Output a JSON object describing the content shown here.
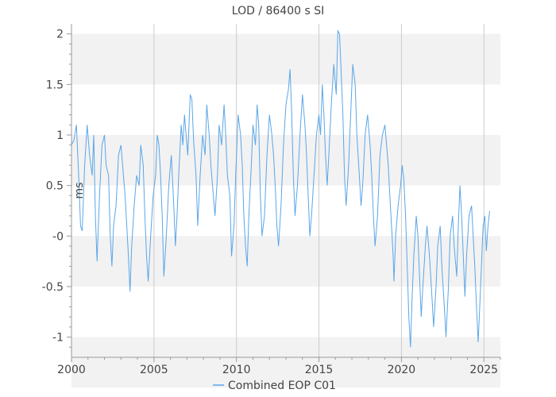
{
  "chart_data": {
    "type": "line",
    "title": "LOD / 86400 s SI",
    "xlabel": "",
    "ylabel": "ms",
    "xlim": [
      2000,
      2026
    ],
    "ylim": [
      -1.2,
      2.1
    ],
    "xticks": [
      2000,
      2005,
      2010,
      2015,
      2020,
      2025
    ],
    "xtick_labels": [
      "2000",
      "2005",
      "2010",
      "2015",
      "2020",
      "2025"
    ],
    "yticks": [
      -1,
      -0.5,
      0,
      0.5,
      1,
      1.5,
      2
    ],
    "ytick_labels": [
      "-1",
      "-0.5",
      "-0",
      "0.5",
      "1",
      "1.5",
      "2"
    ],
    "grid": "vertical lines + alternating horizontal bands",
    "legend": "bottom-center",
    "series": [
      {
        "name": "Combined EOP C01",
        "color": "#5aa6e8",
        "points": [
          [
            2000.0,
            0.9
          ],
          [
            2000.15,
            0.95
          ],
          [
            2000.3,
            1.1
          ],
          [
            2000.45,
            0.55
          ],
          [
            2000.55,
            0.1
          ],
          [
            2000.65,
            0.05
          ],
          [
            2000.8,
            0.7
          ],
          [
            2000.95,
            1.1
          ],
          [
            2001.1,
            0.8
          ],
          [
            2001.25,
            0.6
          ],
          [
            2001.35,
            1.0
          ],
          [
            2001.45,
            0.2
          ],
          [
            2001.55,
            -0.25
          ],
          [
            2001.7,
            0.4
          ],
          [
            2001.85,
            0.9
          ],
          [
            2002.0,
            1.0
          ],
          [
            2002.1,
            0.7
          ],
          [
            2002.25,
            0.6
          ],
          [
            2002.35,
            0.0
          ],
          [
            2002.45,
            -0.3
          ],
          [
            2002.55,
            0.1
          ],
          [
            2002.7,
            0.3
          ],
          [
            2002.85,
            0.8
          ],
          [
            2003.0,
            0.9
          ],
          [
            2003.15,
            0.6
          ],
          [
            2003.25,
            0.4
          ],
          [
            2003.35,
            0.1
          ],
          [
            2003.45,
            -0.2
          ],
          [
            2003.55,
            -0.55
          ],
          [
            2003.65,
            -0.1
          ],
          [
            2003.8,
            0.3
          ],
          [
            2003.95,
            0.6
          ],
          [
            2004.1,
            0.5
          ],
          [
            2004.2,
            0.9
          ],
          [
            2004.35,
            0.7
          ],
          [
            2004.45,
            0.2
          ],
          [
            2004.55,
            -0.2
          ],
          [
            2004.65,
            -0.45
          ],
          [
            2004.8,
            0.0
          ],
          [
            2004.95,
            0.4
          ],
          [
            2005.1,
            0.6
          ],
          [
            2005.2,
            1.0
          ],
          [
            2005.3,
            0.9
          ],
          [
            2005.4,
            0.6
          ],
          [
            2005.5,
            0.2
          ],
          [
            2005.6,
            -0.4
          ],
          [
            2005.75,
            0.0
          ],
          [
            2005.9,
            0.5
          ],
          [
            2006.05,
            0.8
          ],
          [
            2006.2,
            0.3
          ],
          [
            2006.3,
            -0.1
          ],
          [
            2006.4,
            0.2
          ],
          [
            2006.5,
            0.6
          ],
          [
            2006.65,
            1.1
          ],
          [
            2006.75,
            0.9
          ],
          [
            2006.85,
            1.2
          ],
          [
            2006.95,
            1.0
          ],
          [
            2007.05,
            0.8
          ],
          [
            2007.2,
            1.4
          ],
          [
            2007.3,
            1.35
          ],
          [
            2007.4,
            0.95
          ],
          [
            2007.55,
            0.6
          ],
          [
            2007.65,
            0.1
          ],
          [
            2007.8,
            0.6
          ],
          [
            2007.95,
            1.0
          ],
          [
            2008.1,
            0.8
          ],
          [
            2008.2,
            1.3
          ],
          [
            2008.35,
            1.0
          ],
          [
            2008.45,
            0.7
          ],
          [
            2008.6,
            0.4
          ],
          [
            2008.7,
            0.2
          ],
          [
            2008.85,
            0.6
          ],
          [
            2008.95,
            1.1
          ],
          [
            2009.1,
            0.9
          ],
          [
            2009.25,
            1.3
          ],
          [
            2009.35,
            1.0
          ],
          [
            2009.45,
            0.6
          ],
          [
            2009.6,
            0.4
          ],
          [
            2009.7,
            -0.2
          ],
          [
            2009.85,
            0.1
          ],
          [
            2009.95,
            0.6
          ],
          [
            2010.1,
            1.2
          ],
          [
            2010.25,
            1.0
          ],
          [
            2010.35,
            0.7
          ],
          [
            2010.45,
            0.2
          ],
          [
            2010.55,
            -0.1
          ],
          [
            2010.65,
            -0.3
          ],
          [
            2010.75,
            0.2
          ],
          [
            2010.9,
            0.7
          ],
          [
            2011.0,
            1.1
          ],
          [
            2011.15,
            0.9
          ],
          [
            2011.25,
            1.3
          ],
          [
            2011.35,
            1.1
          ],
          [
            2011.45,
            0.4
          ],
          [
            2011.55,
            0.0
          ],
          [
            2011.7,
            0.2
          ],
          [
            2011.85,
            0.8
          ],
          [
            2012.0,
            1.2
          ],
          [
            2012.15,
            1.0
          ],
          [
            2012.25,
            0.8
          ],
          [
            2012.35,
            0.5
          ],
          [
            2012.45,
            0.1
          ],
          [
            2012.55,
            -0.1
          ],
          [
            2012.7,
            0.3
          ],
          [
            2012.85,
            0.9
          ],
          [
            2013.0,
            1.3
          ],
          [
            2013.15,
            1.45
          ],
          [
            2013.25,
            1.65
          ],
          [
            2013.35,
            1.2
          ],
          [
            2013.45,
            0.6
          ],
          [
            2013.55,
            0.2
          ],
          [
            2013.7,
            0.5
          ],
          [
            2013.85,
            1.0
          ],
          [
            2014.0,
            1.4
          ],
          [
            2014.15,
            1.1
          ],
          [
            2014.25,
            0.8
          ],
          [
            2014.35,
            0.4
          ],
          [
            2014.45,
            0.0
          ],
          [
            2014.55,
            0.2
          ],
          [
            2014.7,
            0.6
          ],
          [
            2014.85,
            1.0
          ],
          [
            2015.0,
            1.2
          ],
          [
            2015.1,
            1.0
          ],
          [
            2015.2,
            1.5
          ],
          [
            2015.3,
            1.2
          ],
          [
            2015.4,
            0.8
          ],
          [
            2015.5,
            0.5
          ],
          [
            2015.6,
            0.8
          ],
          [
            2015.75,
            1.3
          ],
          [
            2015.9,
            1.7
          ],
          [
            2016.05,
            1.4
          ],
          [
            2016.15,
            2.03
          ],
          [
            2016.25,
            2.0
          ],
          [
            2016.35,
            1.6
          ],
          [
            2016.45,
            1.2
          ],
          [
            2016.55,
            0.6
          ],
          [
            2016.65,
            0.3
          ],
          [
            2016.8,
            0.7
          ],
          [
            2016.95,
            1.3
          ],
          [
            2017.05,
            1.7
          ],
          [
            2017.2,
            1.5
          ],
          [
            2017.3,
            1.0
          ],
          [
            2017.45,
            0.6
          ],
          [
            2017.55,
            0.3
          ],
          [
            2017.65,
            0.5
          ],
          [
            2017.8,
            1.0
          ],
          [
            2017.95,
            1.2
          ],
          [
            2018.1,
            0.9
          ],
          [
            2018.2,
            0.6
          ],
          [
            2018.3,
            0.2
          ],
          [
            2018.4,
            -0.1
          ],
          [
            2018.55,
            0.2
          ],
          [
            2018.7,
            0.8
          ],
          [
            2018.85,
            1.0
          ],
          [
            2019.0,
            1.1
          ],
          [
            2019.1,
            0.9
          ],
          [
            2019.2,
            0.7
          ],
          [
            2019.3,
            0.4
          ],
          [
            2019.4,
            0.1
          ],
          [
            2019.5,
            -0.2
          ],
          [
            2019.55,
            -0.45
          ],
          [
            2019.65,
            0.0
          ],
          [
            2019.8,
            0.3
          ],
          [
            2019.95,
            0.5
          ],
          [
            2020.05,
            0.7
          ],
          [
            2020.15,
            0.55
          ],
          [
            2020.25,
            0.2
          ],
          [
            2020.35,
            -0.3
          ],
          [
            2020.45,
            -0.8
          ],
          [
            2020.55,
            -1.1
          ],
          [
            2020.65,
            -0.6
          ],
          [
            2020.75,
            -0.2
          ],
          [
            2020.9,
            0.2
          ],
          [
            2021.0,
            0.0
          ],
          [
            2021.1,
            -0.4
          ],
          [
            2021.2,
            -0.8
          ],
          [
            2021.3,
            -0.5
          ],
          [
            2021.45,
            -0.1
          ],
          [
            2021.55,
            0.1
          ],
          [
            2021.7,
            -0.2
          ],
          [
            2021.85,
            -0.6
          ],
          [
            2021.95,
            -0.9
          ],
          [
            2022.1,
            -0.5
          ],
          [
            2022.2,
            -0.1
          ],
          [
            2022.35,
            0.1
          ],
          [
            2022.45,
            -0.3
          ],
          [
            2022.6,
            -0.7
          ],
          [
            2022.7,
            -1.0
          ],
          [
            2022.85,
            -0.5
          ],
          [
            2022.95,
            0.0
          ],
          [
            2023.1,
            0.2
          ],
          [
            2023.2,
            -0.1
          ],
          [
            2023.35,
            -0.4
          ],
          [
            2023.45,
            0.1
          ],
          [
            2023.55,
            0.5
          ],
          [
            2023.65,
            0.2
          ],
          [
            2023.75,
            -0.2
          ],
          [
            2023.85,
            -0.6
          ],
          [
            2023.95,
            -0.2
          ],
          [
            2024.1,
            0.2
          ],
          [
            2024.25,
            0.3
          ],
          [
            2024.35,
            0.0
          ],
          [
            2024.45,
            -0.3
          ],
          [
            2024.55,
            -0.7
          ],
          [
            2024.65,
            -1.05
          ],
          [
            2024.75,
            -0.7
          ],
          [
            2024.85,
            -0.3
          ],
          [
            2024.95,
            0.1
          ],
          [
            2025.05,
            0.2
          ],
          [
            2025.15,
            -0.15
          ],
          [
            2025.25,
            0.1
          ],
          [
            2025.35,
            0.25
          ]
        ]
      }
    ]
  }
}
